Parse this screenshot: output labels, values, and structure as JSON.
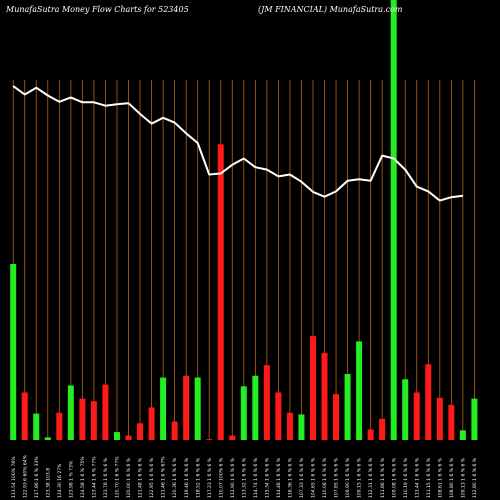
{
  "header": {
    "left_title": "MunafaSutra  Money Flow  Charts for 523405",
    "right_title": "(JM FINANCIAL) MunafaSutra.com"
  },
  "colors": {
    "background": "#000000",
    "gridline": "#b5651d",
    "bar_up": "#22ee22",
    "bar_down": "#ff1a1a",
    "price_line": "#ffffff"
  },
  "chart_data": {
    "type": "bar",
    "title": "MunafaSutra  Money Flow  Charts for 523405",
    "subtitle": "(JM FINANCIAL) MunafaSutra.com",
    "categories": [
      "113.54 100% 76%",
      "122.93 6 60% 64%",
      "117.86 1 6 % 33%",
      "123.38 103.8",
      "124.30 16 27%",
      "123.98 1 % 73%",
      "124.58 1 6 % 75%",
      "123.44 1 6 % 77%",
      "123.78 1 6 % 6 %",
      "120.70 1 6 % 77%",
      "120.00 1 6 % 6 %",
      "121.48 1 6 % 6 %",
      "122.95 1 6 % 6 %",
      "121.46 1 6 % 67%",
      "120.36 1 6 % 6 %",
      "119.46 1 6 % 6 %",
      "118.52 1 6 % 6 %",
      "117.23 1 6 % 6 %",
      "110.07 100% 6 %",
      "112.90 1 6 % 6 %",
      "113.32 1 6 % 6 %",
      "114.74 1 6 % 6 %",
      "115.34 1 6 % 6 %",
      "114.48 1 6 % 6 %",
      "116.36 1 6 % 6 %",
      "107.33 1 6 % 6 %",
      "104.65 1 6 % 6 %",
      "110.08 1 6 % 6 %",
      "107.85 1 6 % 6 %",
      "109.90 1 6 % 6 %",
      "109.15 1 6 % 6 %",
      "112.31 1 6 % 6 %",
      "111.86 1 6 % 6 %",
      "109.08 1 6 % 6 %",
      "110.19 1 6 % 6 %",
      "113.44 1 6 % 6 %",
      "111.15 1 6 % 6 %",
      "108.61 1 6 % 6 %",
      "108.80 1 6 % 6 %",
      "109.13 1 6 % 6 %",
      "112.80 1 6 % 6 %"
    ],
    "flow_values": [
      200,
      54,
      30,
      3,
      31,
      62,
      47,
      44,
      63,
      9,
      5,
      19,
      37,
      71,
      21,
      73,
      71,
      1,
      336,
      5,
      61,
      73,
      85,
      54,
      31,
      29,
      118,
      99,
      52,
      75,
      112,
      12,
      24,
      500,
      69,
      54,
      86,
      48,
      40,
      11,
      47
    ],
    "flow_directions": [
      "up",
      "down",
      "up",
      "up",
      "down",
      "up",
      "down",
      "down",
      "down",
      "up",
      "down",
      "down",
      "down",
      "up",
      "down",
      "down",
      "up",
      "down",
      "down",
      "down",
      "up",
      "up",
      "down",
      "down",
      "down",
      "up",
      "down",
      "down",
      "down",
      "up",
      "up",
      "down",
      "down",
      "up",
      "up",
      "down",
      "down",
      "down",
      "down",
      "up",
      "up"
    ],
    "price_line": [
      113.54,
      111.8,
      113.2,
      111.6,
      110.3,
      111.2,
      110.2,
      110.2,
      109.5,
      109.8,
      110.0,
      107.8,
      105.8,
      107.0,
      106.0,
      103.8,
      101.8,
      95.3,
      95.5,
      97.3,
      98.6,
      96.8,
      96.3,
      94.9,
      95.3,
      93.8,
      91.7,
      90.7,
      91.8,
      94.0,
      94.3,
      94.0,
      99.2,
      98.6,
      96.3,
      92.8,
      91.8,
      89.9,
      90.6,
      90.9,
      null
    ],
    "xlabel": "",
    "ylabel": "",
    "grid": "vertical"
  }
}
